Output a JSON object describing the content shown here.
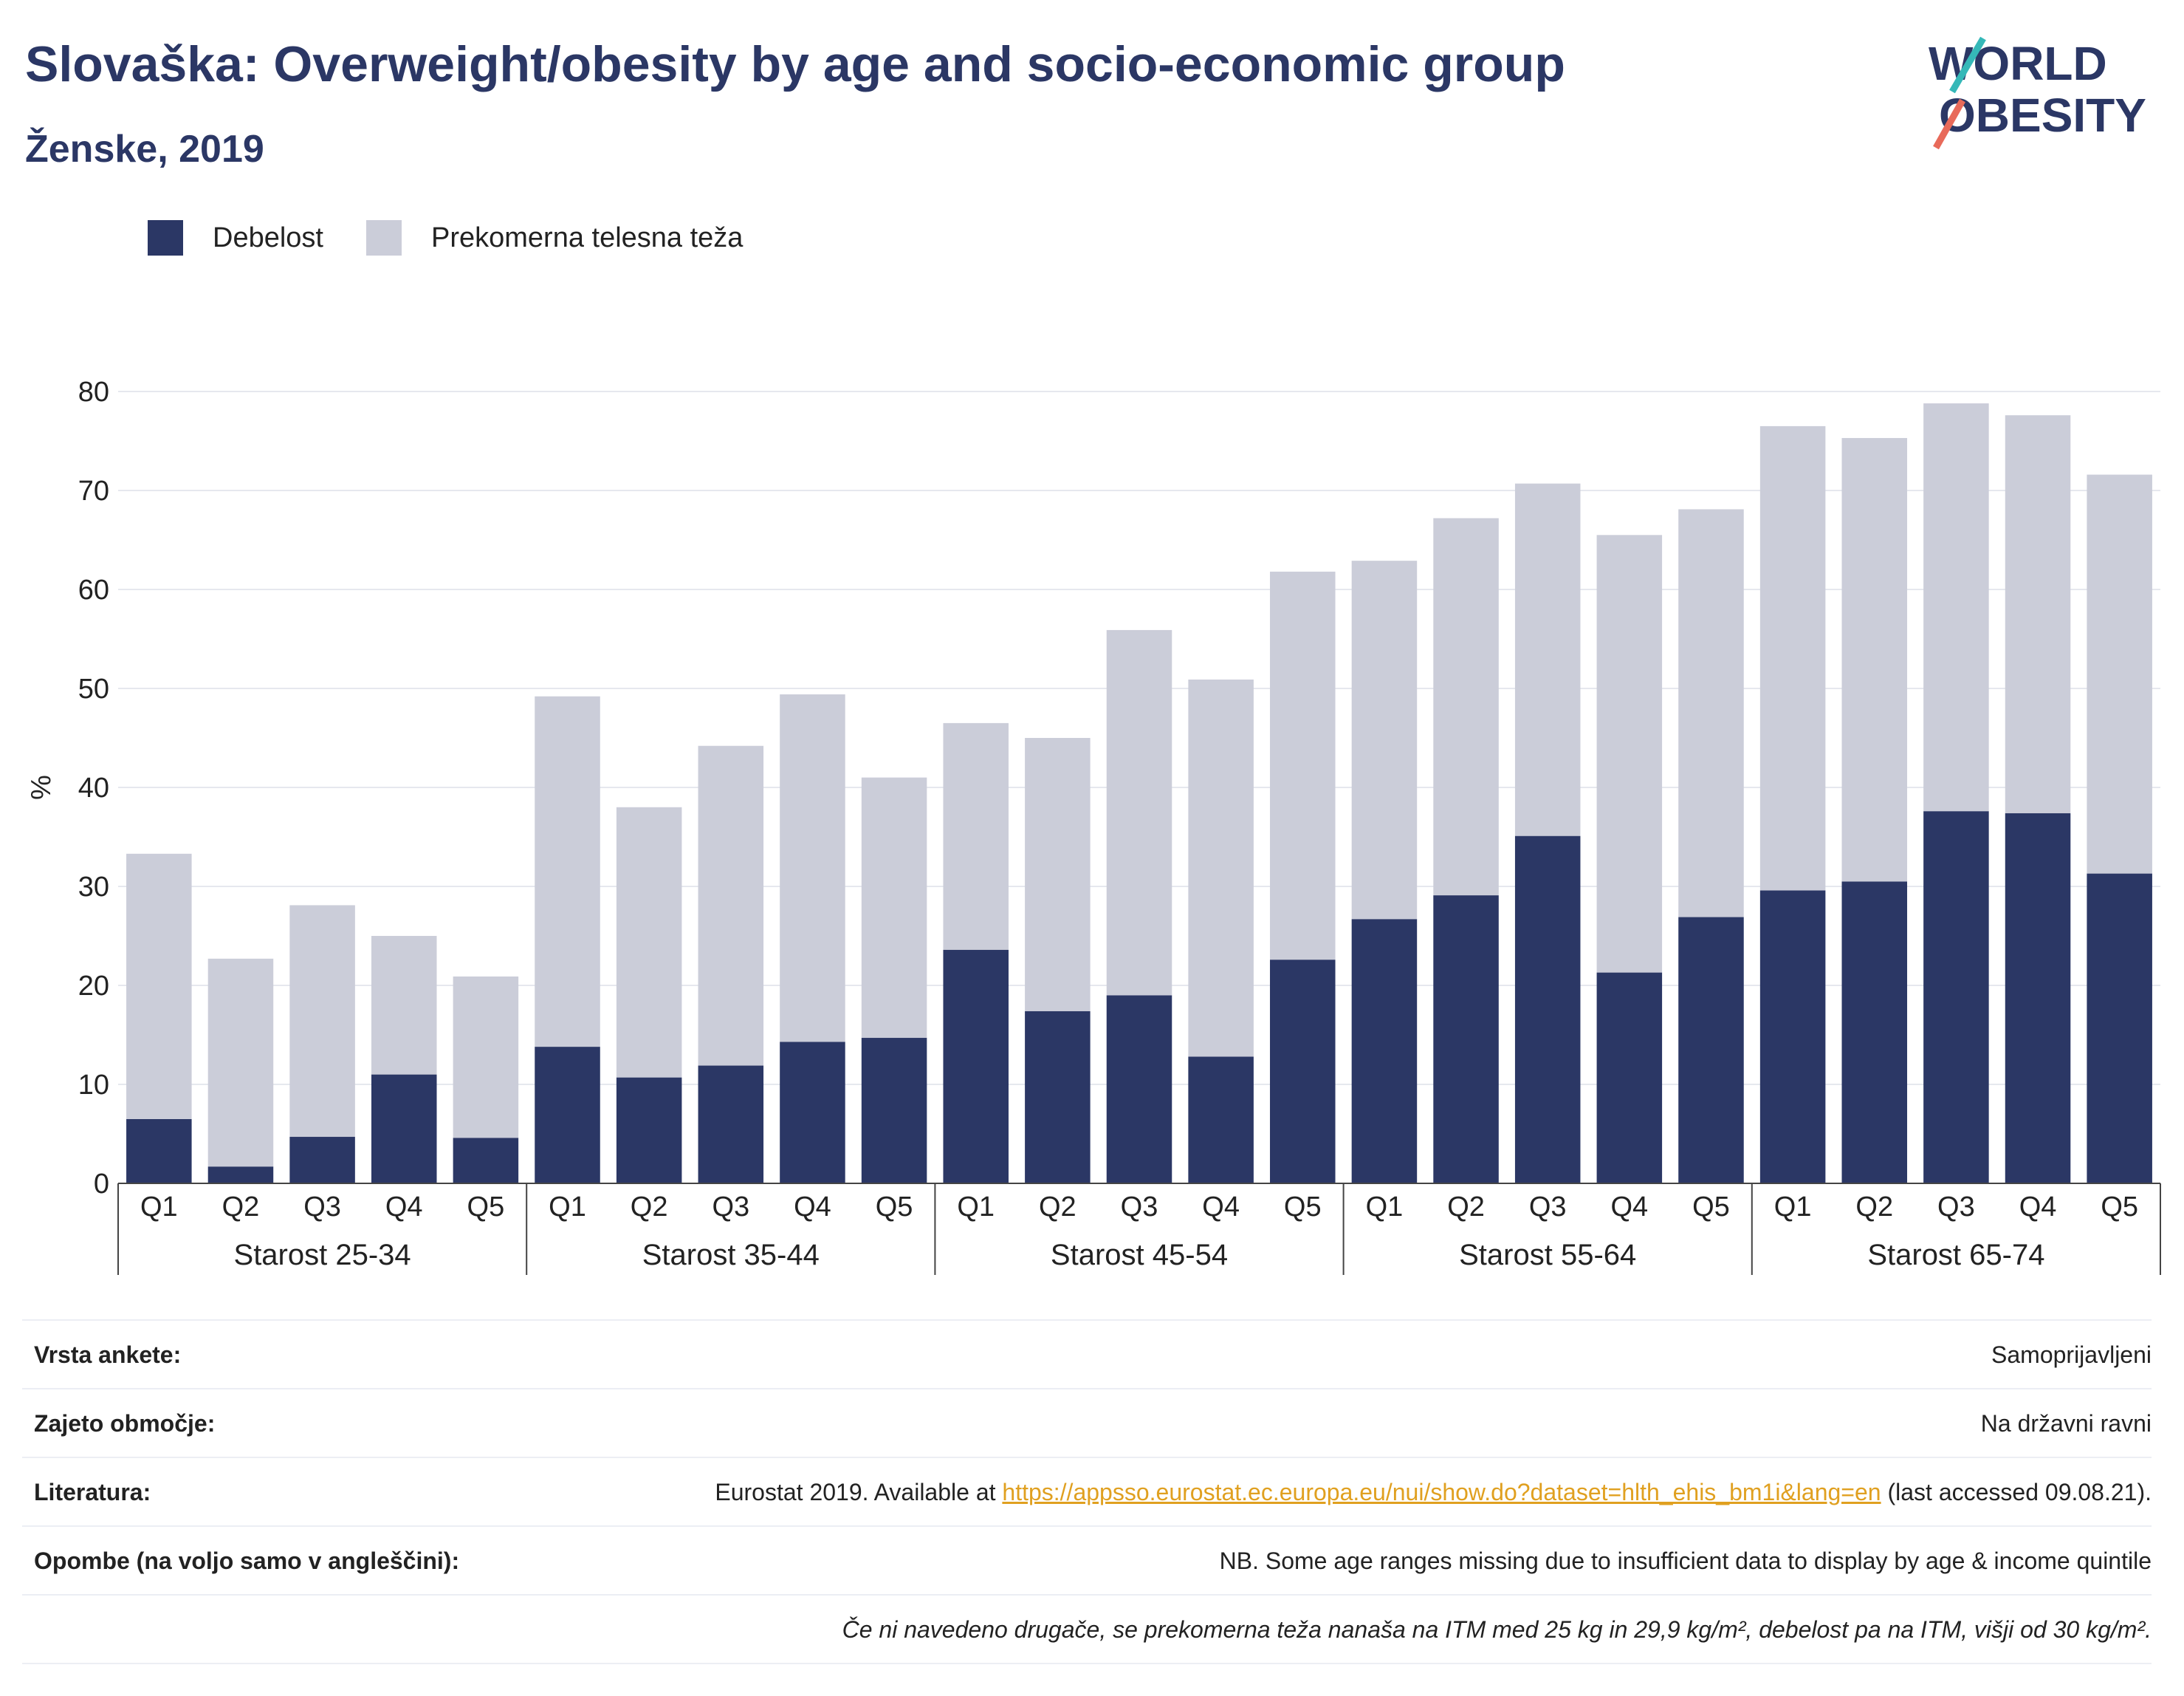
{
  "title": "Slovaška: Overweight/obesity by age and socio-economic group",
  "subtitle": "Ženske, 2019",
  "logo": {
    "line1": "WORLD",
    "line2": "OBESITY"
  },
  "colors": {
    "obesity": "#2b3765",
    "overweight": "#cbcdd9",
    "title": "#2b3765",
    "link": "#e0a020"
  },
  "legend": [
    {
      "label": "Debelost",
      "color": "#2b3765"
    },
    {
      "label": "Prekomerna telesna teža",
      "color": "#cbcdd9"
    }
  ],
  "chart_data": {
    "type": "bar",
    "stacked": true,
    "ylabel": "%",
    "ylim": [
      0,
      80
    ],
    "yticks": [
      0,
      10,
      20,
      30,
      40,
      50,
      60,
      70,
      80
    ],
    "grid": true,
    "legend_position": "top-left",
    "groups": [
      "Starost 25-34",
      "Starost 35-44",
      "Starost 45-54",
      "Starost 55-64",
      "Starost 65-74"
    ],
    "quintiles": [
      "Q1",
      "Q2",
      "Q3",
      "Q4",
      "Q5"
    ],
    "series": [
      {
        "name": "Debelost",
        "values": [
          6.5,
          1.7,
          4.7,
          11.0,
          4.6,
          13.8,
          10.7,
          11.9,
          14.3,
          14.7,
          23.6,
          17.4,
          19.0,
          12.8,
          22.6,
          26.7,
          29.1,
          35.1,
          21.3,
          26.9,
          29.6,
          30.5,
          37.6,
          37.4,
          31.3
        ]
      },
      {
        "name": "Prekomerna telesna teža",
        "values": [
          26.8,
          21.0,
          23.4,
          14.0,
          16.3,
          35.4,
          27.3,
          32.3,
          35.1,
          26.3,
          22.9,
          27.6,
          36.9,
          38.1,
          39.2,
          36.2,
          38.1,
          35.6,
          44.2,
          41.2,
          46.9,
          44.8,
          41.2,
          40.2,
          40.3
        ]
      }
    ]
  },
  "meta": [
    {
      "key": "Vrsta ankete:",
      "value": "Samoprijavljeni"
    },
    {
      "key": "Zajeto območje:",
      "value": "Na državni ravni"
    },
    {
      "key": "Literatura:",
      "value_pre": "Eurostat 2019. Available at ",
      "link": "https://appsso.eurostat.ec.europa.eu/nui/show.do?dataset=hlth_ehis_bm1i&lang=en",
      "value_post": " (last accessed 09.08.21)."
    },
    {
      "key": "Opombe (na voljo samo v angleščini):",
      "value": "NB. Some age ranges missing due to insufficient data to display by age & income quintile"
    }
  ],
  "footnote": "Če ni navedeno drugače, se prekomerna teža nanaša na ITM med 25 kg in 29,9 kg/m², debelost pa na ITM, višji od 30 kg/m²."
}
